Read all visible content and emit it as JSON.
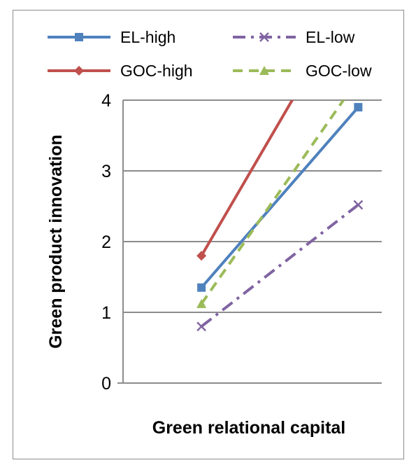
{
  "chart_data": {
    "type": "line",
    "title": "",
    "xlabel": "Green relational capital",
    "ylabel": "Green product innovation",
    "x": [
      1,
      2
    ],
    "xlim": [
      0.5,
      2.15
    ],
    "ylim": [
      0,
      4
    ],
    "yticks": [
      "0",
      "1",
      "2",
      "3",
      "4"
    ],
    "grid": true,
    "legend_position": "top",
    "series": [
      {
        "name": "EL-high",
        "color": "#4f81bd",
        "marker": "square",
        "dash": "solid",
        "values": [
          1.35,
          3.9
        ]
      },
      {
        "name": "EL-low",
        "color": "#8064a2",
        "marker": "x",
        "dash": "dash-dot",
        "values": [
          0.8,
          2.52
        ]
      },
      {
        "name": "GOC-high",
        "color": "#c0504d",
        "marker": "diamond",
        "dash": "solid",
        "values": [
          1.8,
          5.6
        ]
      },
      {
        "name": "GOC-low",
        "color": "#9bbb59",
        "marker": "triangle",
        "dash": "dash",
        "values": [
          1.12,
          4.3
        ]
      }
    ]
  }
}
